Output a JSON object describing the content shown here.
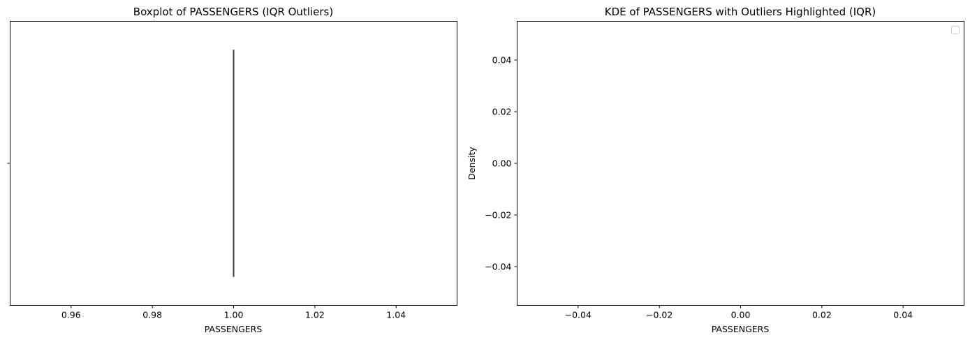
{
  "chart_data": [
    {
      "type": "box",
      "title": "Boxplot of PASSENGERS (IQR Outliers)",
      "xlabel": "PASSENGERS",
      "ylabel": "",
      "xlim": [
        0.945,
        1.055
      ],
      "x_ticks": [
        0.96,
        0.98,
        1.0,
        1.02,
        1.04
      ],
      "x_tick_labels": [
        "0.96",
        "0.98",
        "1.00",
        "1.02",
        "1.04"
      ],
      "y_ticks": [
        0
      ],
      "y_tick_labels": [
        ""
      ],
      "box": {
        "min": 1.0,
        "q1": 1.0,
        "median": 1.0,
        "q3": 1.0,
        "max": 1.0
      },
      "box_color": "#3d3d3d",
      "grid": false
    },
    {
      "type": "line",
      "title": "KDE of PASSENGERS with Outliers Highlighted (IQR)",
      "xlabel": "PASSENGERS",
      "ylabel": "Density",
      "xlim": [
        -0.055,
        0.055
      ],
      "ylim": [
        -0.055,
        0.055
      ],
      "x_ticks": [
        -0.04,
        -0.02,
        0.0,
        0.02,
        0.04
      ],
      "x_tick_labels": [
        "−0.04",
        "−0.02",
        "0.00",
        "0.02",
        "0.04"
      ],
      "y_ticks": [
        -0.04,
        -0.02,
        0.0,
        0.02,
        0.04
      ],
      "y_tick_labels": [
        "−0.04",
        "−0.02",
        "0.00",
        "0.02",
        "0.04"
      ],
      "series": [],
      "legend": {
        "placement": "upper right",
        "entries": []
      },
      "grid": false
    }
  ]
}
